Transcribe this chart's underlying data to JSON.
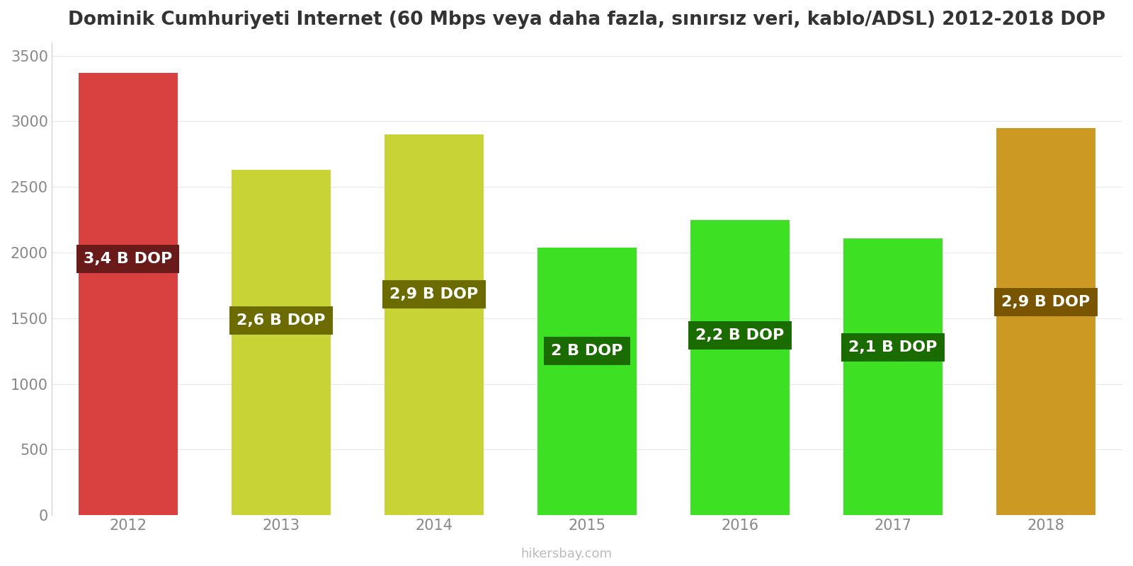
{
  "title": "Dominik Cumhuriyeti Internet (60 Mbps veya daha fazla, sınırsız veri, kablo/ADSL) 2012-2018 DOP",
  "years": [
    2012,
    2013,
    2014,
    2015,
    2016,
    2017,
    2018
  ],
  "values": [
    3370,
    2630,
    2900,
    2035,
    2250,
    2110,
    2950
  ],
  "bar_colors": [
    "#d94040",
    "#c8d435",
    "#c8d435",
    "#3de022",
    "#3de022",
    "#3de022",
    "#cc9922"
  ],
  "label_box_colors": [
    "#6b1a1a",
    "#6b6b00",
    "#6b6b00",
    "#1a6b00",
    "#1a6b00",
    "#1a6b00",
    "#7a5500"
  ],
  "labels": [
    "3,4 B DOP",
    "2,6 B DOP",
    "2,9 B DOP",
    "2 B DOP",
    "2,2 B DOP",
    "2,1 B DOP",
    "2,9 B DOP"
  ],
  "label_text_color": "#ffffff",
  "ylabel_values": [
    0,
    500,
    1000,
    1500,
    2000,
    2500,
    3000,
    3500
  ],
  "ylim": [
    0,
    3600
  ],
  "watermark": "hikersbay.com",
  "background_color": "#ffffff",
  "title_fontsize": 19,
  "tick_fontsize": 15,
  "label_fontsize": 16,
  "label_y_abs": [
    1950,
    1480,
    1680,
    1250,
    1370,
    1280,
    1620
  ]
}
